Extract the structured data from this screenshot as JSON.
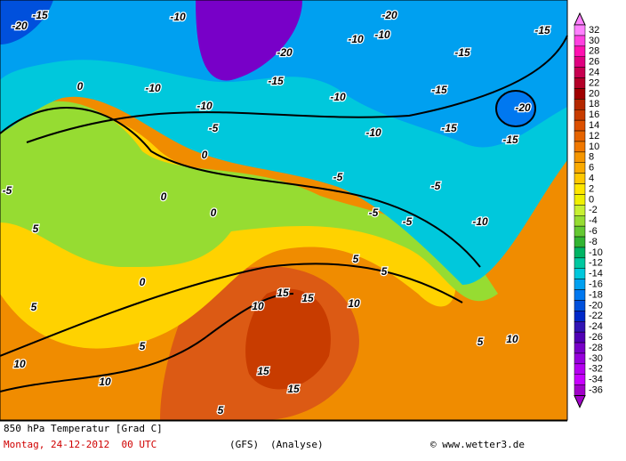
{
  "footer": {
    "title": "850 hPa Temperatur [Grad C]",
    "date": "Montag, 24-12-2012  00 UTC",
    "model": "(GFS)",
    "run": "(Analyse)",
    "credit": "© www.wetter3.de"
  },
  "legend": {
    "labels": [
      32,
      30,
      28,
      26,
      24,
      22,
      20,
      18,
      16,
      14,
      12,
      10,
      8,
      6,
      4,
      2,
      0,
      -2,
      -4,
      -6,
      -8,
      -10,
      -12,
      -14,
      -16,
      -18,
      -20,
      -22,
      -24,
      -26,
      -28,
      -30,
      -32,
      -34,
      -36
    ],
    "colors": [
      "#ff80ff",
      "#ff40e0",
      "#ff10b0",
      "#e00080",
      "#c80050",
      "#b40028",
      "#a00000",
      "#b42800",
      "#c83c00",
      "#dc5000",
      "#e66400",
      "#f07800",
      "#f59600",
      "#faaa00",
      "#ffc800",
      "#ffe600",
      "#f0f000",
      "#c8f032",
      "#96dc32",
      "#64c832",
      "#32b432",
      "#00b464",
      "#00c8a0",
      "#00c8dc",
      "#00a0f0",
      "#0078f0",
      "#0050dc",
      "#0028c8",
      "#3214b4",
      "#5000b4",
      "#7800c8",
      "#9600dc",
      "#b400f0",
      "#c800ff",
      "#a000c8"
    ]
  },
  "map": {
    "contour_labels": [
      "-20",
      "-15",
      "-15",
      "-10",
      "-20",
      "-15",
      "-10",
      "-20",
      "-15",
      "-10",
      "-20",
      "-15",
      "-15",
      "-10",
      "-10",
      "-10",
      "-10",
      "-5",
      "-5",
      "-5",
      "0",
      "0",
      "0",
      "0",
      "-5",
      "-5",
      "5",
      "5",
      "5",
      "10",
      "10",
      "10",
      "15",
      "15",
      "15",
      "15",
      "10",
      "5",
      "5",
      "5",
      "10",
      "5",
      "-15",
      "-10",
      "-5",
      "0"
    ]
  }
}
